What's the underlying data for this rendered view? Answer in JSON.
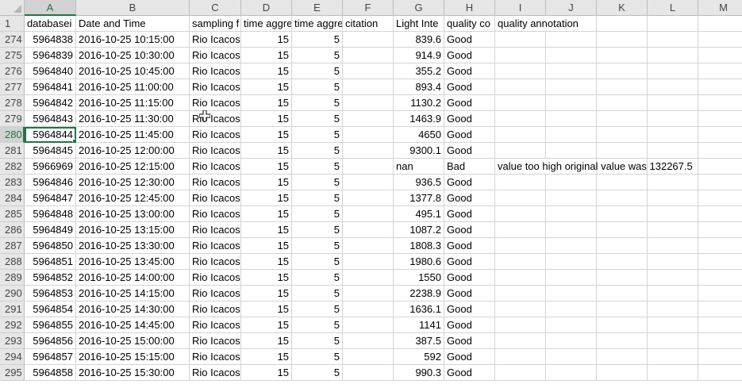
{
  "columns": [
    "A",
    "B",
    "C",
    "D",
    "E",
    "F",
    "G",
    "H",
    "I",
    "J",
    "K",
    "L",
    "M"
  ],
  "header_row": {
    "num": "1",
    "cells": [
      "databasei",
      "Date and Time",
      "sampling f",
      "time aggre",
      "time aggre",
      "citation",
      "Light Inte",
      "quality co",
      "quality annotation",
      "",
      "",
      "",
      ""
    ]
  },
  "rows": [
    {
      "num": "274",
      "id": "5964838",
      "dt": "2016-10-25 10:15:00",
      "site": "Rio Icacos",
      "d": "15",
      "e": "5",
      "light": "839.6",
      "q": "Good",
      "note": ""
    },
    {
      "num": "275",
      "id": "5964839",
      "dt": "2016-10-25 10:30:00",
      "site": "Rio Icacos",
      "d": "15",
      "e": "5",
      "light": "914.9",
      "q": "Good",
      "note": ""
    },
    {
      "num": "276",
      "id": "5964840",
      "dt": "2016-10-25 10:45:00",
      "site": "Rio Icacos",
      "d": "15",
      "e": "5",
      "light": "355.2",
      "q": "Good",
      "note": ""
    },
    {
      "num": "277",
      "id": "5964841",
      "dt": "2016-10-25 11:00:00",
      "site": "Rio Icacos",
      "d": "15",
      "e": "5",
      "light": "893.4",
      "q": "Good",
      "note": ""
    },
    {
      "num": "278",
      "id": "5964842",
      "dt": "2016-10-25 11:15:00",
      "site": "Rio Icacos",
      "d": "15",
      "e": "5",
      "light": "1130.2",
      "q": "Good",
      "note": ""
    },
    {
      "num": "279",
      "id": "5964843",
      "dt": "2016-10-25 11:30:00",
      "site": "Rio Icacos",
      "d": "15",
      "e": "5",
      "light": "1463.9",
      "q": "Good",
      "note": ""
    },
    {
      "num": "280",
      "id": "5964844",
      "dt": "2016-10-25 11:45:00",
      "site": "Rio Icacos",
      "d": "15",
      "e": "5",
      "light": "4650",
      "q": "Good",
      "note": ""
    },
    {
      "num": "281",
      "id": "5964845",
      "dt": "2016-10-25 12:00:00",
      "site": "Rio Icacos",
      "d": "15",
      "e": "5",
      "light": "9300.1",
      "q": "Good",
      "note": ""
    },
    {
      "num": "282",
      "id": "5966969",
      "dt": "2016-10-25 12:15:00",
      "site": "Rio Icacos",
      "d": "15",
      "e": "5",
      "light": "nan",
      "q": "Bad",
      "note": "value too high original value was 132267.5"
    },
    {
      "num": "283",
      "id": "5964846",
      "dt": "2016-10-25 12:30:00",
      "site": "Rio Icacos",
      "d": "15",
      "e": "5",
      "light": "936.5",
      "q": "Good",
      "note": ""
    },
    {
      "num": "284",
      "id": "5964847",
      "dt": "2016-10-25 12:45:00",
      "site": "Rio Icacos",
      "d": "15",
      "e": "5",
      "light": "1377.8",
      "q": "Good",
      "note": ""
    },
    {
      "num": "285",
      "id": "5964848",
      "dt": "2016-10-25 13:00:00",
      "site": "Rio Icacos",
      "d": "15",
      "e": "5",
      "light": "495.1",
      "q": "Good",
      "note": ""
    },
    {
      "num": "286",
      "id": "5964849",
      "dt": "2016-10-25 13:15:00",
      "site": "Rio Icacos",
      "d": "15",
      "e": "5",
      "light": "1087.2",
      "q": "Good",
      "note": ""
    },
    {
      "num": "287",
      "id": "5964850",
      "dt": "2016-10-25 13:30:00",
      "site": "Rio Icacos",
      "d": "15",
      "e": "5",
      "light": "1808.3",
      "q": "Good",
      "note": ""
    },
    {
      "num": "288",
      "id": "5964851",
      "dt": "2016-10-25 13:45:00",
      "site": "Rio Icacos",
      "d": "15",
      "e": "5",
      "light": "1980.6",
      "q": "Good",
      "note": ""
    },
    {
      "num": "289",
      "id": "5964852",
      "dt": "2016-10-25 14:00:00",
      "site": "Rio Icacos",
      "d": "15",
      "e": "5",
      "light": "1550",
      "q": "Good",
      "note": ""
    },
    {
      "num": "290",
      "id": "5964853",
      "dt": "2016-10-25 14:15:00",
      "site": "Rio Icacos",
      "d": "15",
      "e": "5",
      "light": "2238.9",
      "q": "Good",
      "note": ""
    },
    {
      "num": "291",
      "id": "5964854",
      "dt": "2016-10-25 14:30:00",
      "site": "Rio Icacos",
      "d": "15",
      "e": "5",
      "light": "1636.1",
      "q": "Good",
      "note": ""
    },
    {
      "num": "292",
      "id": "5964855",
      "dt": "2016-10-25 14:45:00",
      "site": "Rio Icacos",
      "d": "15",
      "e": "5",
      "light": "1141",
      "q": "Good",
      "note": ""
    },
    {
      "num": "293",
      "id": "5964856",
      "dt": "2016-10-25 15:00:00",
      "site": "Rio Icacos",
      "d": "15",
      "e": "5",
      "light": "387.5",
      "q": "Good",
      "note": ""
    },
    {
      "num": "294",
      "id": "5964857",
      "dt": "2016-10-25 15:15:00",
      "site": "Rio Icacos",
      "d": "15",
      "e": "5",
      "light": "592",
      "q": "Good",
      "note": ""
    },
    {
      "num": "295",
      "id": "5964858",
      "dt": "2016-10-25 15:30:00",
      "site": "Rio Icacos",
      "d": "15",
      "e": "5",
      "light": "990.3",
      "q": "Good",
      "note": ""
    }
  ],
  "active_cell": {
    "column": "A",
    "row": "280"
  },
  "colors": {
    "accent": "#217346",
    "header_bg": "#e6e6e6",
    "gridline": "#d4d4d4"
  },
  "cursor_icon": "cell-cross-cursor-icon"
}
